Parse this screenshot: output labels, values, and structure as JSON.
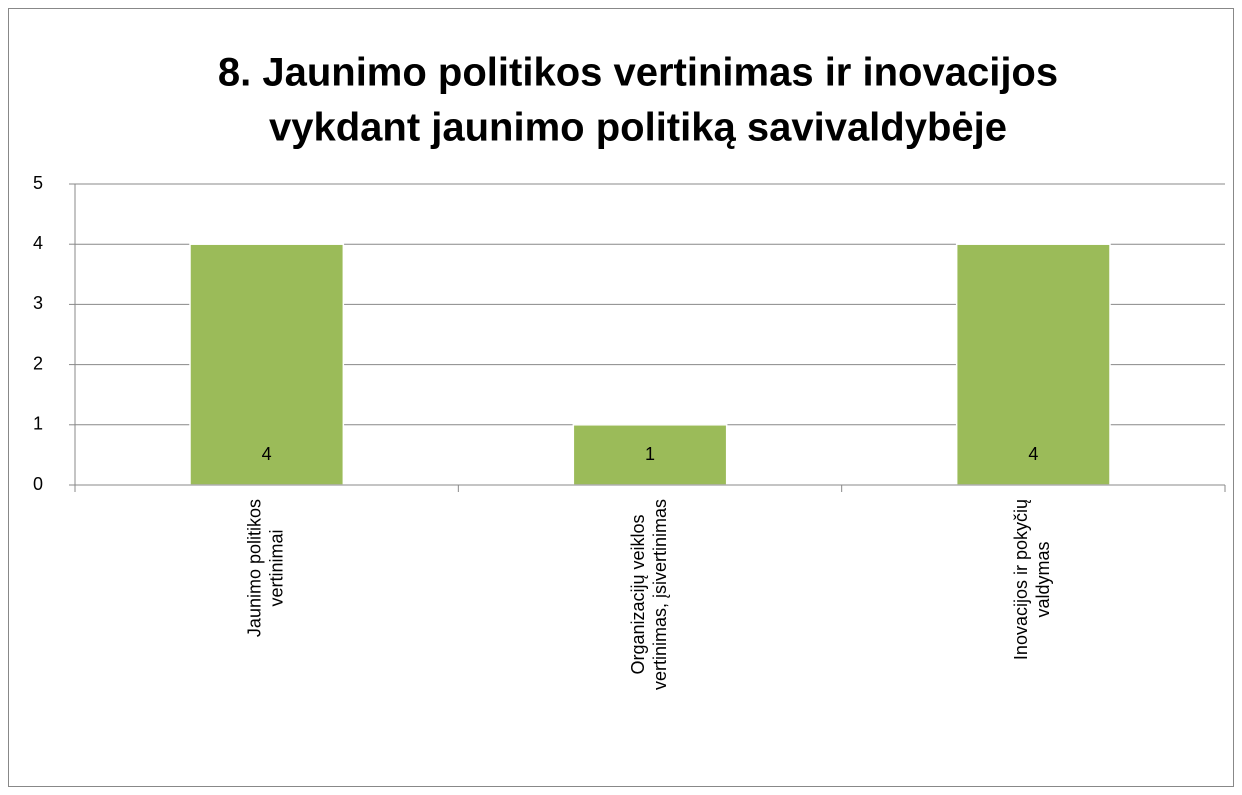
{
  "chart_data": {
    "type": "bar",
    "title": [
      "8. Jaunimo politikos vertinimas  ir inovacijos",
      "vykdant jaunimo politiką savivaldybėje"
    ],
    "categories": [
      [
        "Jaunimo politikos",
        "vertinimai"
      ],
      [
        "Organizacijų veiklos",
        "vertinimas, įsivertinimas"
      ],
      [
        "Inovacijos ir pokyčių",
        "valdymas"
      ]
    ],
    "values": [
      4,
      1,
      4
    ],
    "color": "#9bbb59",
    "ylim": [
      0,
      5
    ],
    "yticks": [
      0,
      1,
      2,
      3,
      4,
      5
    ],
    "grid": true
  }
}
